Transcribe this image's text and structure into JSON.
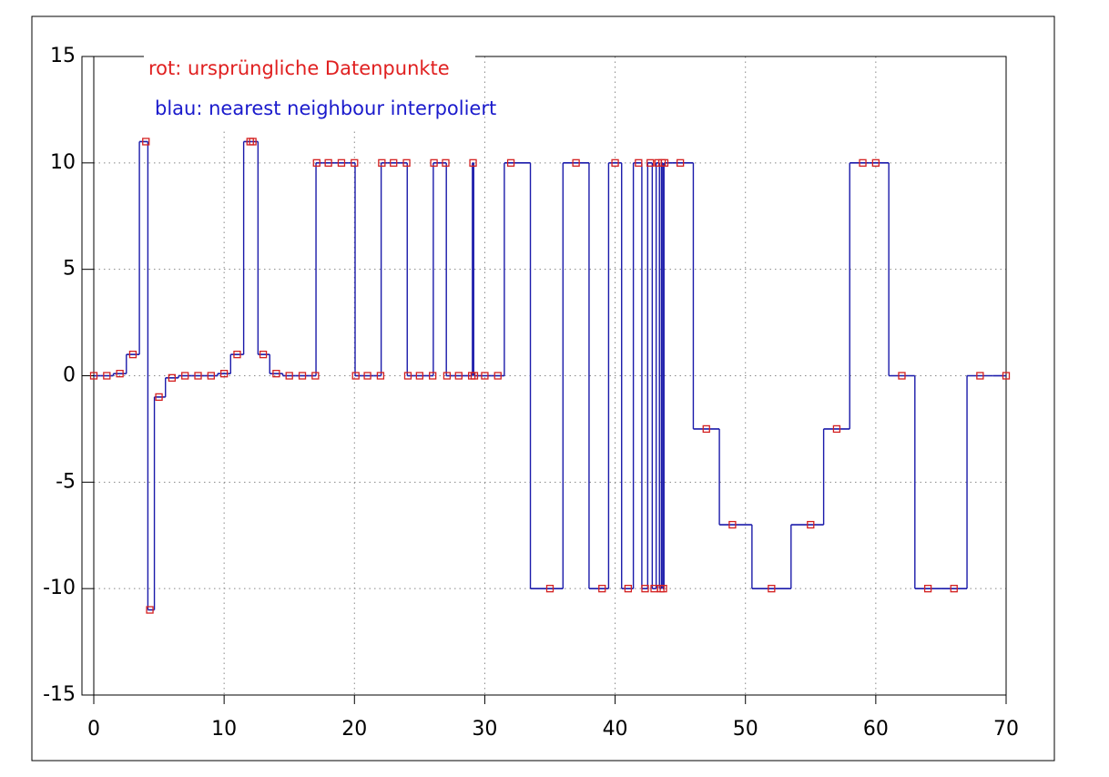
{
  "chart_data": {
    "type": "step",
    "annotations": [
      {
        "text": "rot: ursprüngliche Datenpunkte",
        "color": "#e02020"
      },
      {
        "text": "blau: nearest neighbour interpoliert",
        "color": "#1a1acc"
      }
    ],
    "x": [
      0,
      1,
      2,
      3,
      4,
      4.3,
      5,
      6,
      7,
      8,
      9,
      10,
      11,
      12,
      12.2,
      13,
      14,
      15,
      16,
      17,
      17.1,
      18,
      19,
      20,
      20.1,
      21,
      22,
      22.1,
      23,
      24,
      24.1,
      25,
      26,
      26.1,
      27,
      27.1,
      28,
      29,
      29.1,
      29.2,
      30,
      31,
      32,
      35,
      37,
      39,
      40,
      41,
      41.8,
      42.3,
      42.7,
      43,
      43.3,
      43.5,
      43.6,
      43.7,
      43.8,
      45,
      47,
      49,
      52,
      55,
      57,
      59,
      60,
      62,
      64,
      66,
      68,
      70
    ],
    "values": [
      0,
      0,
      0.1,
      1,
      11,
      -11,
      -1,
      -0.1,
      0,
      0,
      0,
      0.1,
      1,
      11,
      11,
      1,
      0.1,
      0,
      0,
      0,
      10,
      10,
      10,
      10,
      0,
      0,
      0,
      10,
      10,
      10,
      0,
      0,
      0,
      10,
      10,
      0,
      0,
      0,
      10,
      0,
      0,
      0,
      10,
      -10,
      10,
      -10,
      10,
      -10,
      10,
      -10,
      10,
      -10,
      10,
      -10,
      10,
      -10,
      10,
      10,
      -2.5,
      -7,
      -10,
      -7,
      -2.5,
      10,
      10,
      0,
      -10,
      -10,
      0,
      0
    ],
    "point_color": "#d42020",
    "line_color": "#1a1aaa",
    "xlim": [
      0,
      70
    ],
    "ylim": [
      -15,
      15
    ],
    "xticks": [
      0,
      10,
      20,
      30,
      40,
      50,
      60,
      70
    ],
    "yticks": [
      -15,
      -10,
      -5,
      0,
      5,
      10,
      15
    ],
    "grid": true
  }
}
